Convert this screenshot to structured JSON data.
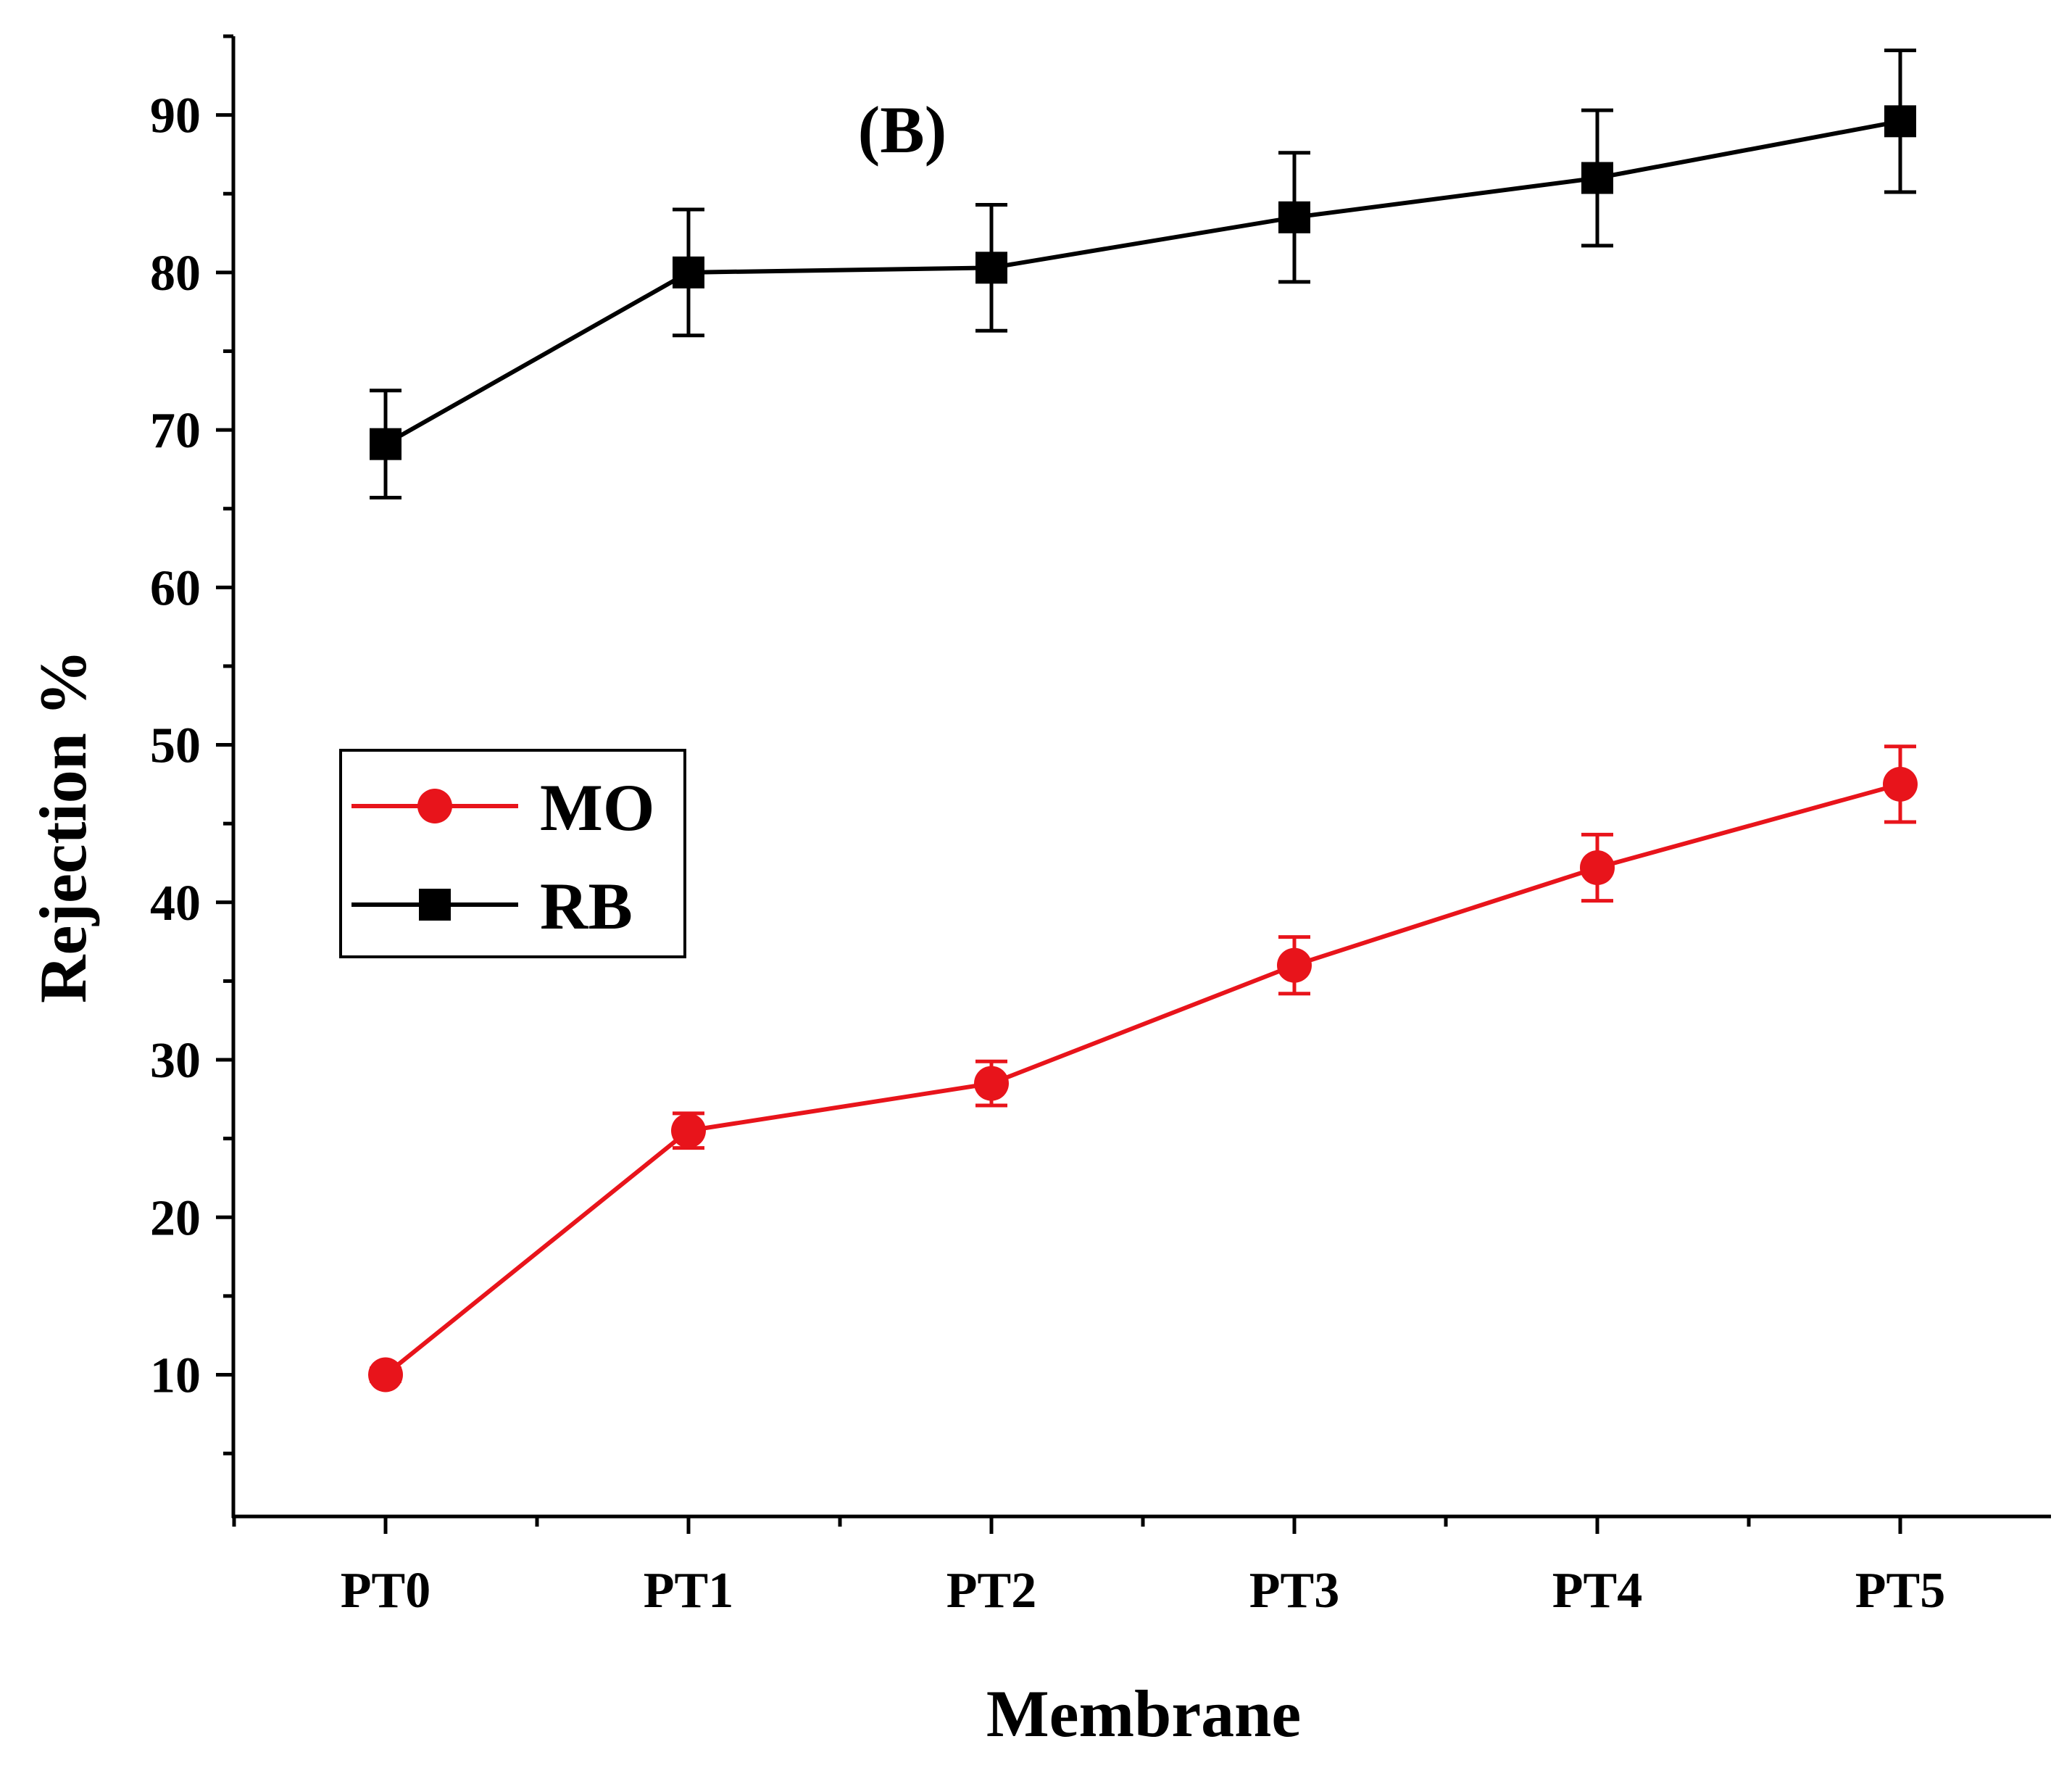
{
  "chart_data": {
    "type": "line",
    "panel_label": "(B)",
    "xlabel": "Membrane",
    "ylabel": "Rejection %",
    "categories": [
      "PT0",
      "PT1",
      "PT2",
      "PT3",
      "PT4",
      "PT5"
    ],
    "ylim": [
      1,
      95
    ],
    "yticks": [
      10,
      20,
      30,
      40,
      50,
      60,
      70,
      80,
      90
    ],
    "grid": false,
    "legend_position": "center-left",
    "series": [
      {
        "name": "MO",
        "marker": "circle",
        "color": "#e8141b",
        "values": [
          10.0,
          25.5,
          28.5,
          36.0,
          42.2,
          47.5
        ],
        "errors": [
          0.4,
          1.1,
          1.4,
          1.8,
          2.1,
          2.4
        ]
      },
      {
        "name": "RB",
        "marker": "square",
        "color": "#000000",
        "values": [
          69.1,
          80.0,
          80.3,
          83.5,
          86.0,
          89.6
        ],
        "errors": [
          3.4,
          4.0,
          4.0,
          4.1,
          4.3,
          4.5
        ]
      }
    ]
  }
}
